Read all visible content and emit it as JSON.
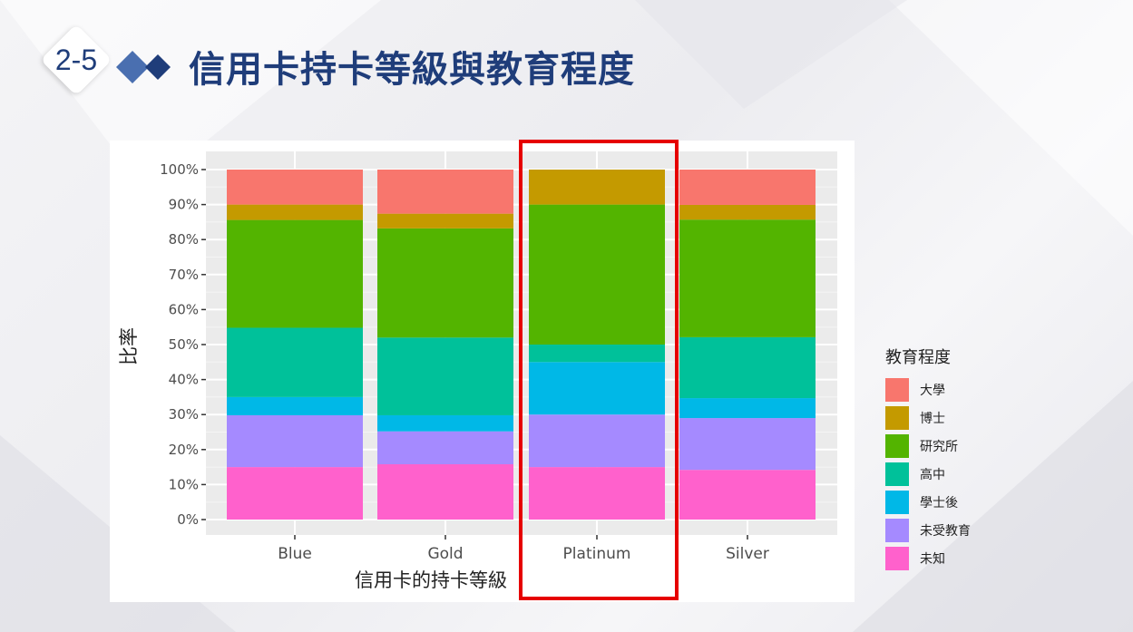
{
  "slide": {
    "number": "2-5",
    "title": "信用卡持卡等級與教育程度"
  },
  "chart_data": {
    "type": "bar",
    "stacked": true,
    "categories": [
      "Blue",
      "Gold",
      "Platinum",
      "Silver"
    ],
    "xlabel": "信用卡的持卡等級",
    "ylabel": "比率",
    "ylim": [
      0,
      100
    ],
    "y_ticks": [
      "0%",
      "10%",
      "20%",
      "30%",
      "40%",
      "50%",
      "60%",
      "70%",
      "80%",
      "90%",
      "100%"
    ],
    "legend_title": "教育程度",
    "legend_placement": "right",
    "grid": true,
    "series": [
      {
        "name": "未知",
        "color": "#FF61CC",
        "values": [
          15.0,
          15.8,
          15.0,
          14.2
        ]
      },
      {
        "name": "未受教育",
        "color": "#A58AFF",
        "values": [
          14.8,
          9.4,
          15.0,
          14.8
        ]
      },
      {
        "name": "學士後",
        "color": "#00B8E7",
        "values": [
          5.2,
          4.6,
          15.0,
          5.7
        ]
      },
      {
        "name": "高中",
        "color": "#00C19A",
        "values": [
          19.8,
          22.2,
          5.0,
          17.4
        ]
      },
      {
        "name": "研究所",
        "color": "#53B400",
        "values": [
          30.8,
          31.2,
          40.0,
          33.6
        ]
      },
      {
        "name": "博士",
        "color": "#C49A00",
        "values": [
          4.4,
          4.2,
          10.0,
          4.2
        ]
      },
      {
        "name": "大學",
        "color": "#F8766D",
        "values": [
          10.0,
          12.6,
          0.0,
          10.1
        ]
      }
    ],
    "highlighted_category": "Platinum"
  }
}
